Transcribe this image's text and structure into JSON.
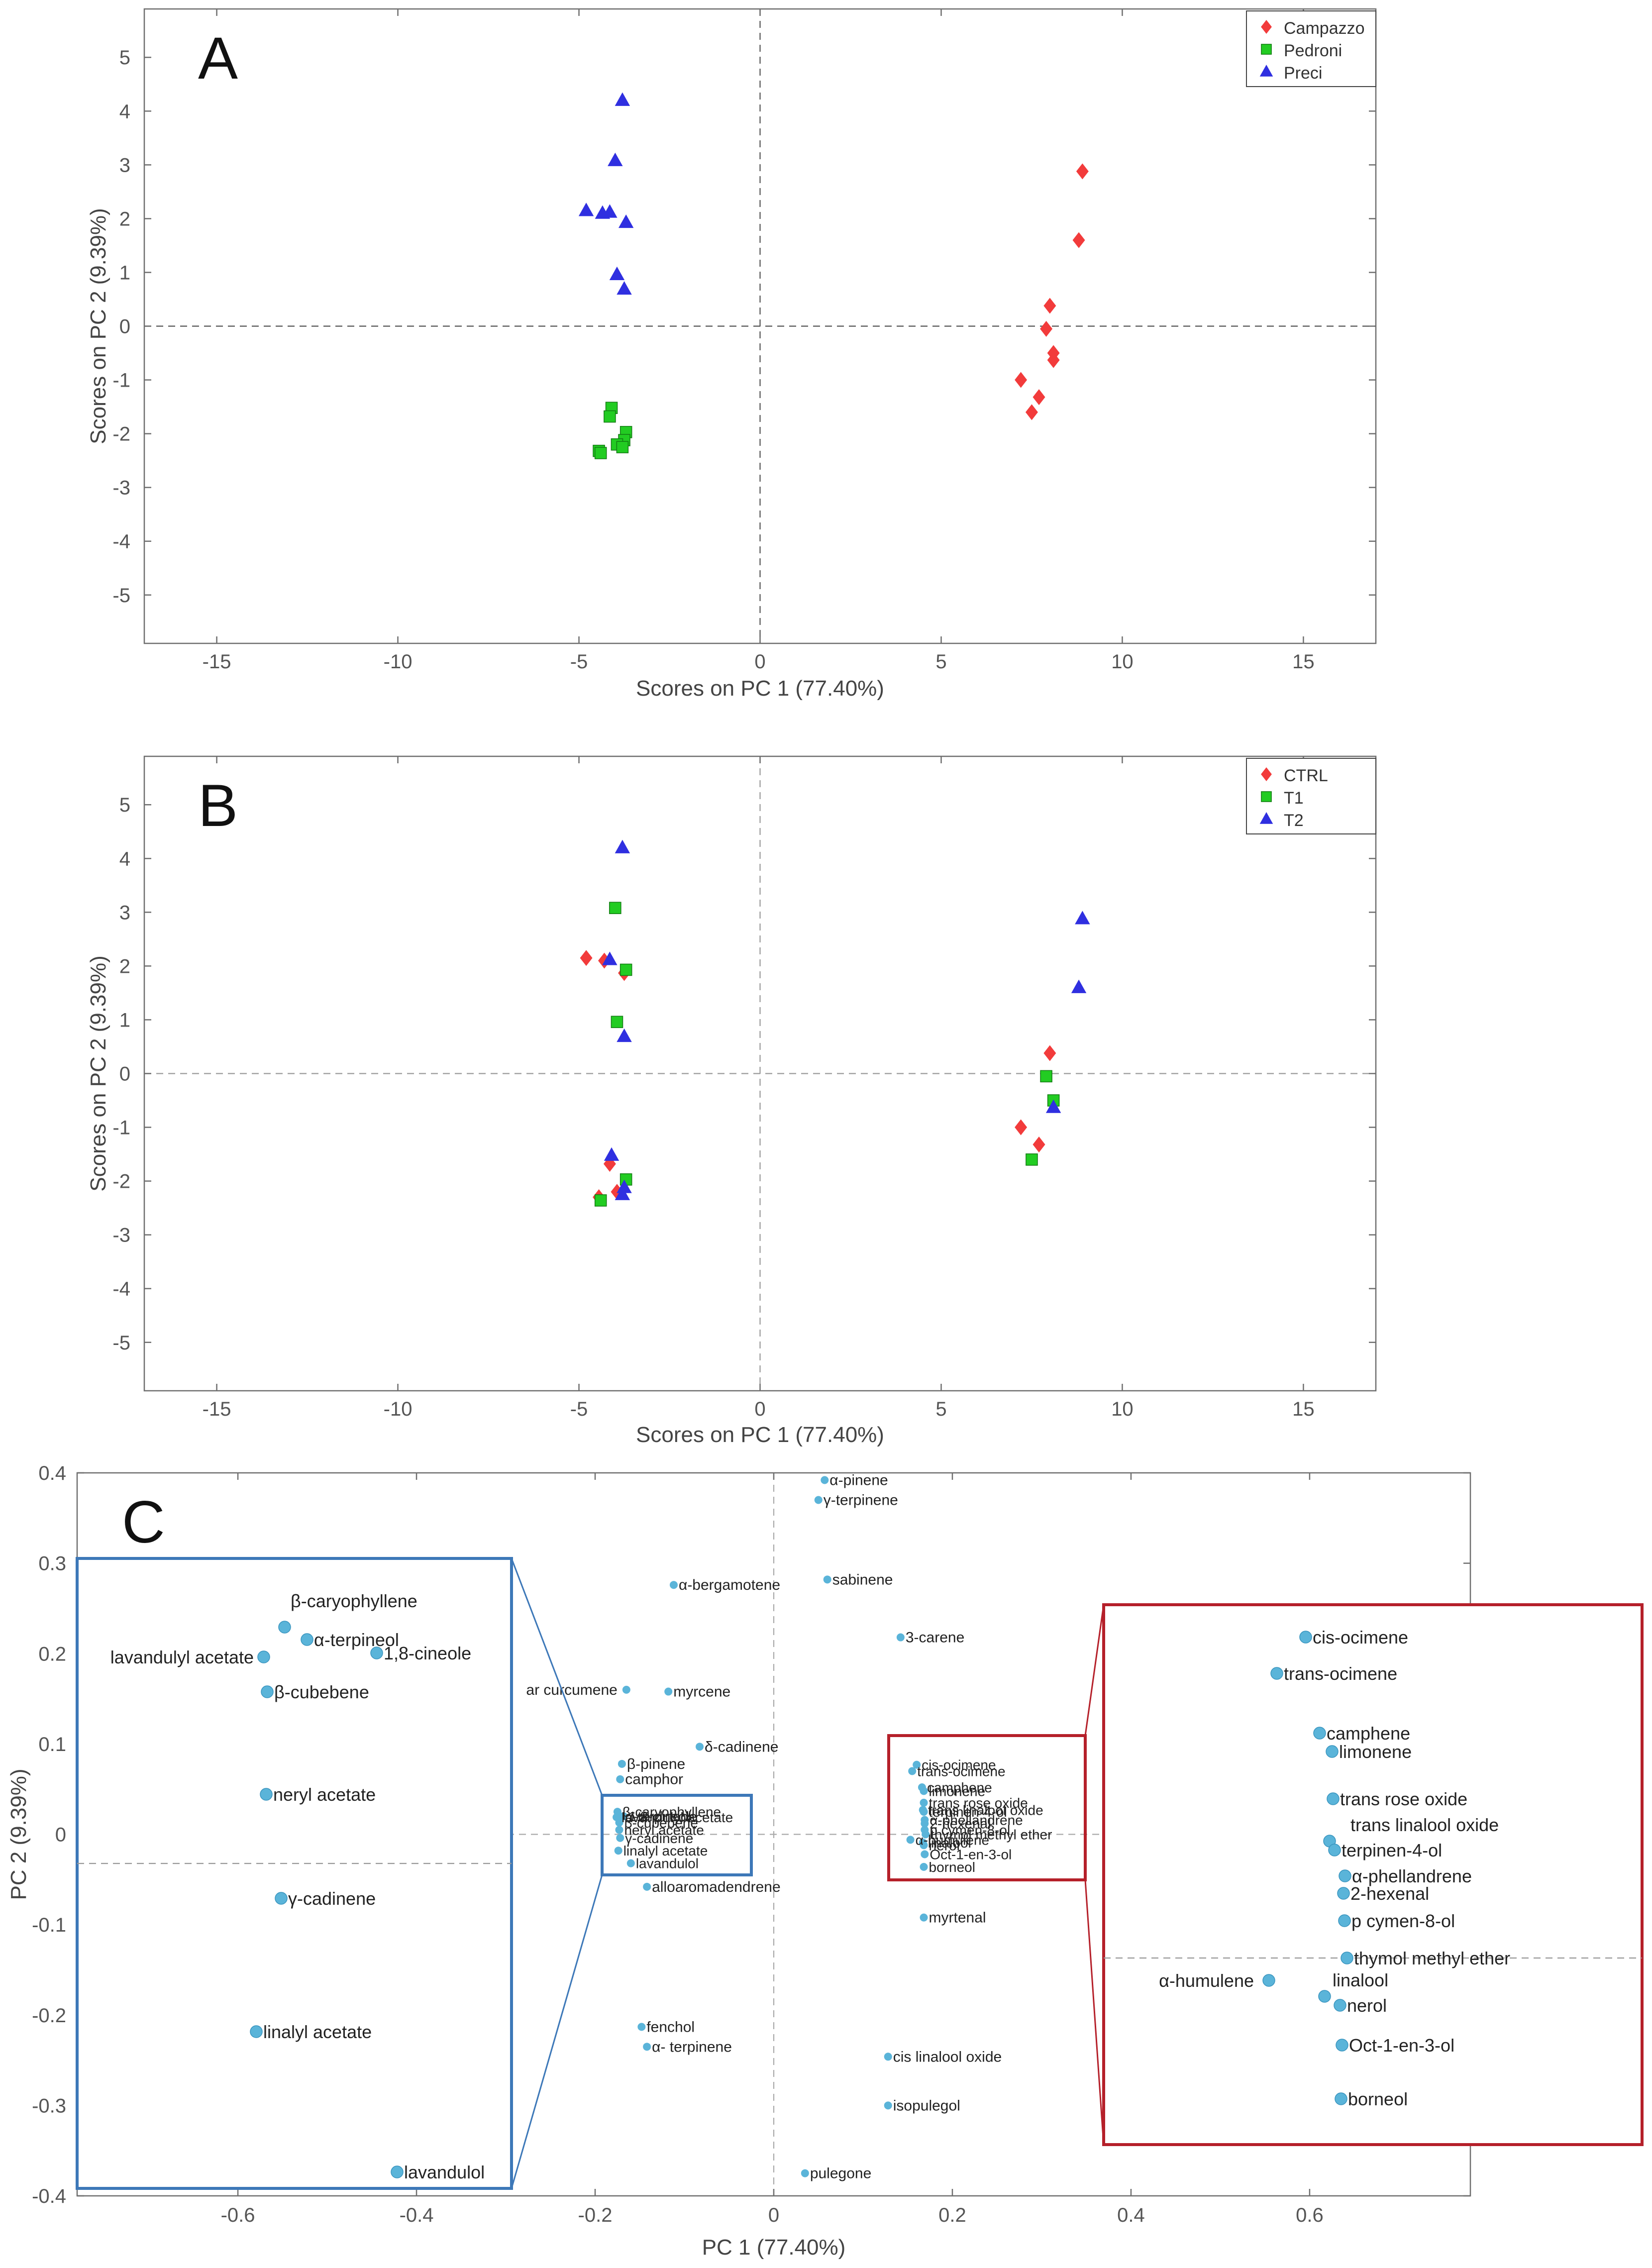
{
  "colors": {
    "campazzo": "#f23b3b",
    "pedroni": "#22cc22",
    "preci": "#2f2fe0",
    "loading_point": "#5ab4d9",
    "zoom_blue": "#3d78b8",
    "zoom_red": "#b5202a",
    "axis": "#6f6f6f",
    "dashed": "#555555"
  },
  "chart_data": [
    {
      "id": "A",
      "type": "scatter",
      "panel_label": "A",
      "xlabel": "Scores on PC 1 (77.40%)",
      "ylabel": "Scores on PC 2 (9.39%)",
      "xlim": [
        -17,
        17
      ],
      "ylim": [
        -5.9,
        5.9
      ],
      "xticks": [
        -15,
        -10,
        -5,
        0,
        5,
        10,
        15
      ],
      "yticks": [
        -5,
        -4,
        -3,
        -2,
        -1,
        0,
        1,
        2,
        3,
        4,
        5
      ],
      "legend_position": "top-right",
      "series": [
        {
          "name": "Campazzo",
          "marker": "diamond",
          "color": "#f23b3b",
          "points": [
            [
              8.9,
              2.88
            ],
            [
              8.8,
              1.6
            ],
            [
              8.0,
              0.38
            ],
            [
              7.9,
              -0.05
            ],
            [
              8.1,
              -0.5
            ],
            [
              8.1,
              -0.63
            ],
            [
              7.2,
              -1.0
            ],
            [
              7.7,
              -1.32
            ],
            [
              7.5,
              -1.6
            ]
          ]
        },
        {
          "name": "Pedroni",
          "marker": "square",
          "color": "#22cc22",
          "points": [
            [
              -4.1,
              -1.52
            ],
            [
              -4.15,
              -1.68
            ],
            [
              -3.7,
              -1.97
            ],
            [
              -3.75,
              -2.12
            ],
            [
              -3.95,
              -2.2
            ],
            [
              -3.8,
              -2.25
            ],
            [
              -4.45,
              -2.32
            ],
            [
              -4.4,
              -2.36
            ]
          ]
        },
        {
          "name": "Preci",
          "marker": "triangle",
          "color": "#2f2fe0",
          "points": [
            [
              -3.8,
              4.2
            ],
            [
              -4.0,
              3.08
            ],
            [
              -4.8,
              2.15
            ],
            [
              -4.35,
              2.1
            ],
            [
              -4.15,
              2.12
            ],
            [
              -3.7,
              1.93
            ],
            [
              -3.95,
              0.96
            ],
            [
              -3.75,
              0.69
            ]
          ]
        }
      ]
    },
    {
      "id": "B",
      "type": "scatter",
      "panel_label": "B",
      "xlabel": "Scores on PC 1 (77.40%)",
      "ylabel": "Scores on PC 2 (9.39%)",
      "xlim": [
        -17,
        17
      ],
      "ylim": [
        -5.9,
        5.9
      ],
      "xticks": [
        -15,
        -10,
        -5,
        0,
        5,
        10,
        15
      ],
      "yticks": [
        -5,
        -4,
        -3,
        -2,
        -1,
        0,
        1,
        2,
        3,
        4,
        5
      ],
      "legend_position": "top-right",
      "series": [
        {
          "name": "CTRL",
          "marker": "diamond",
          "color": "#f23b3b",
          "points": [
            [
              -4.8,
              2.15
            ],
            [
              -4.3,
              2.1
            ],
            [
              -3.75,
              1.87
            ],
            [
              8.0,
              0.38
            ],
            [
              7.2,
              -1.0
            ],
            [
              7.7,
              -1.32
            ],
            [
              -4.15,
              -1.68
            ],
            [
              -3.95,
              -2.2
            ],
            [
              -4.45,
              -2.3
            ]
          ]
        },
        {
          "name": "T1",
          "marker": "square",
          "color": "#22cc22",
          "points": [
            [
              -4.0,
              3.08
            ],
            [
              -3.7,
              1.93
            ],
            [
              -3.95,
              0.96
            ],
            [
              7.9,
              -0.05
            ],
            [
              8.1,
              -0.5
            ],
            [
              7.5,
              -1.6
            ],
            [
              -3.7,
              -1.97
            ],
            [
              -4.4,
              -2.36
            ]
          ]
        },
        {
          "name": "T2",
          "marker": "triangle",
          "color": "#2f2fe0",
          "points": [
            [
              -3.8,
              4.2
            ],
            [
              -4.15,
              2.12
            ],
            [
              -3.75,
              0.69
            ],
            [
              8.9,
              2.88
            ],
            [
              8.8,
              1.6
            ],
            [
              8.1,
              -0.63
            ],
            [
              -4.1,
              -1.52
            ],
            [
              -3.8,
              -2.25
            ],
            [
              -3.75,
              -2.12
            ]
          ]
        }
      ]
    },
    {
      "id": "C",
      "type": "scatter",
      "panel_label": "C",
      "xlabel": "PC 1 (77.40%)",
      "ylabel": "PC 2 (9.39%)",
      "xlim": [
        -0.78,
        0.78
      ],
      "ylim": [
        -0.4,
        0.4
      ],
      "xticks": [
        -0.6,
        -0.4,
        -0.2,
        0,
        0.2,
        0.4,
        0.6
      ],
      "yticks": [
        -0.4,
        -0.3,
        -0.2,
        -0.1,
        0,
        0.1,
        0.2,
        0.3,
        0.4
      ],
      "points": [
        {
          "label": "α-pinene",
          "x": 0.057,
          "y": 0.392
        },
        {
          "label": "γ-terpinene",
          "x": 0.05,
          "y": 0.37
        },
        {
          "label": "sabinene",
          "x": 0.06,
          "y": 0.282
        },
        {
          "label": "α-bergamotene",
          "x": -0.112,
          "y": 0.276
        },
        {
          "label": "3-carene",
          "x": 0.142,
          "y": 0.218
        },
        {
          "label": "ar curcumene",
          "x": -0.165,
          "y": 0.16
        },
        {
          "label": "myrcene",
          "x": -0.118,
          "y": 0.158
        },
        {
          "label": "δ-cadinene",
          "x": -0.083,
          "y": 0.097
        },
        {
          "label": "β-pinene",
          "x": -0.17,
          "y": 0.078
        },
        {
          "label": "camphor",
          "x": -0.172,
          "y": 0.061
        },
        {
          "label": "alloaromadendrene",
          "x": -0.142,
          "y": -0.058
        },
        {
          "label": "myrtenal",
          "x": 0.168,
          "y": -0.092
        },
        {
          "label": "fenchol",
          "x": -0.148,
          "y": -0.213
        },
        {
          "label": "α- terpinene",
          "x": -0.142,
          "y": -0.235
        },
        {
          "label": "cis linalool oxide",
          "x": 0.128,
          "y": -0.246
        },
        {
          "label": "isopulegol",
          "x": 0.128,
          "y": -0.3
        },
        {
          "label": "pulegone",
          "x": 0.035,
          "y": -0.375
        },
        {
          "label": "β-caryophyllene",
          "x": -0.175,
          "y": 0.025
        },
        {
          "label": "α-terpineol",
          "x": -0.172,
          "y": 0.02
        },
        {
          "label": "lavandulyl acetate",
          "x": -0.176,
          "y": 0.019
        },
        {
          "label": "1,8-cineole",
          "x": -0.168,
          "y": 0.02
        },
        {
          "label": "β-cubebene",
          "x": -0.173,
          "y": 0.013
        },
        {
          "label": "neryl acetate",
          "x": -0.173,
          "y": 0.005
        },
        {
          "label": "γ-cadinene",
          "x": -0.172,
          "y": -0.004
        },
        {
          "label": "linalyl acetate",
          "x": -0.174,
          "y": -0.018
        },
        {
          "label": "lavandulol",
          "x": -0.16,
          "y": -0.032
        },
        {
          "label": "cis-ocimene",
          "x": 0.16,
          "y": 0.077
        },
        {
          "label": "trans-ocimene",
          "x": 0.155,
          "y": 0.07
        },
        {
          "label": "camphene",
          "x": 0.166,
          "y": 0.052
        },
        {
          "label": "limonene",
          "x": 0.168,
          "y": 0.048
        },
        {
          "label": "trans rose oxide",
          "x": 0.168,
          "y": 0.035
        },
        {
          "label": "trans linalool oxide",
          "x": 0.167,
          "y": 0.027
        },
        {
          "label": "terpinen-4-ol",
          "x": 0.168,
          "y": 0.025
        },
        {
          "label": "α-phellandrene",
          "x": 0.169,
          "y": 0.016
        },
        {
          "label": "2-hexenal",
          "x": 0.169,
          "y": 0.012
        },
        {
          "label": "p cymen-8-ol",
          "x": 0.169,
          "y": 0.005
        },
        {
          "label": "thymol methyl ether",
          "x": 0.17,
          "y": 0.0
        },
        {
          "label": "α-humulene",
          "x": 0.153,
          "y": -0.006
        },
        {
          "label": "linalool",
          "x": 0.167,
          "y": -0.009
        },
        {
          "label": "nerol",
          "x": 0.168,
          "y": -0.012
        },
        {
          "label": "Oct-1-en-3-ol",
          "x": 0.169,
          "y": -0.022
        },
        {
          "label": "borneol",
          "x": 0.168,
          "y": -0.036
        }
      ],
      "zoom_left": {
        "items": [
          "β-caryophyllene",
          "α-terpineol",
          "lavandulyl acetate",
          "1,8-cineole",
          "β-cubebene",
          "neryl acetate",
          "γ-cadinene",
          "linalyl acetate",
          "lavandulol"
        ]
      },
      "zoom_right": {
        "items": [
          "cis-ocimene",
          "trans-ocimene",
          "camphene",
          "limonene",
          "trans rose oxide",
          "trans linalool oxide",
          "terpinen-4-ol",
          "α-phellandrene",
          "2-hexenal",
          "p cymen-8-ol",
          "thymol methyl ether",
          "α-humulene",
          "linalool",
          "nerol",
          "Oct-1-en-3-ol",
          "borneol"
        ]
      }
    }
  ]
}
